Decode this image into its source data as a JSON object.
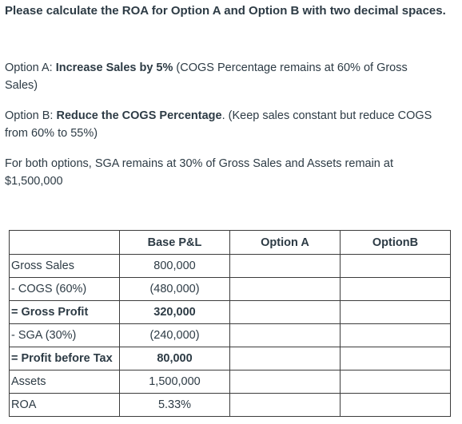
{
  "heading": "Please calculate the ROA for Option A and Option B with two decimal spaces.",
  "option_a": {
    "prefix": "Option A: ",
    "bold": "Increase Sales by 5%",
    "rest": " (COGS Percentage remains at 60% of Gross Sales)"
  },
  "option_b": {
    "prefix": "Option B: ",
    "bold": "Reduce the COGS Percentage",
    "rest": ". (Keep sales constant but reduce COGS from 60% to 55%)"
  },
  "both_options": "For both options, SGA remains at 30% of Gross Sales and Assets remain at $1,500,000",
  "table": {
    "headers": [
      "",
      "Base P&L",
      "Option A",
      "OptionB"
    ],
    "rows": [
      {
        "label": "Gross Sales",
        "base": "800,000",
        "a": "",
        "b": "",
        "bold": false
      },
      {
        "label": "- COGS (60%)",
        "base": "(480,000)",
        "a": "",
        "b": "",
        "bold": false
      },
      {
        "label": "= Gross Profit",
        "base": "320,000",
        "a": "",
        "b": "",
        "bold": true
      },
      {
        "label": "- SGA (30%)",
        "base": "(240,000)",
        "a": "",
        "b": "",
        "bold": false
      },
      {
        "label": "= Profit before Tax",
        "base": "80,000",
        "a": "",
        "b": "",
        "bold": true
      },
      {
        "label": "Assets",
        "base": "1,500,000",
        "a": "",
        "b": "",
        "bold": false
      },
      {
        "label": "ROA",
        "base": "5.33%",
        "a": "",
        "b": "",
        "bold": false
      }
    ]
  }
}
